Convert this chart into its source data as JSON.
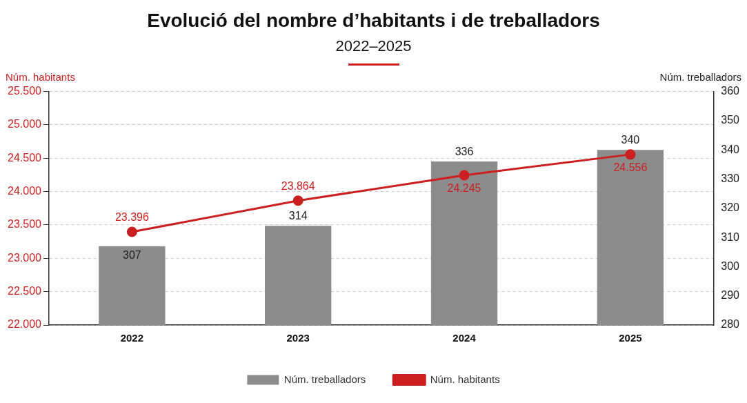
{
  "chart_data": {
    "type": "bar",
    "title": "Evolució del nombre d’habitants i de treballadors",
    "subtitle": "2022–2025",
    "ylabel": "Núm. habitants",
    "y2label": "Núm. treballadors",
    "categories": [
      "2022",
      "2023",
      "2024",
      "2025"
    ],
    "series": [
      {
        "name": "Núm. treballadors",
        "axis": "y2",
        "color": "#8c8c8c",
        "values": [
          307,
          314,
          336,
          340
        ],
        "value_labels": [
          "307",
          "314",
          "336",
          "340"
        ]
      },
      {
        "name": "Núm. habitants",
        "type": "line",
        "axis": "y",
        "color": "#cc1f1f",
        "values": [
          23396,
          23864,
          24245,
          24556
        ],
        "value_labels": [
          "23.396",
          "23.864",
          "24.245",
          "24.556"
        ]
      }
    ],
    "ylim": [
      22000,
      25500
    ],
    "yticks": [
      {
        "value": 22000,
        "label": "22.000"
      },
      {
        "value": 22500,
        "label": "22.500"
      },
      {
        "value": 23000,
        "label": "23.000"
      },
      {
        "value": 23500,
        "label": "23.500"
      },
      {
        "value": 24000,
        "label": "24.000"
      },
      {
        "value": 24500,
        "label": "24.500"
      },
      {
        "value": 25000,
        "label": "25.000"
      },
      {
        "value": 25500,
        "label": "25.500"
      }
    ],
    "y2lim": [
      280,
      360
    ],
    "y2ticks": [
      280,
      290,
      300,
      310,
      320,
      330,
      340,
      350,
      360
    ],
    "grid": "y",
    "legend": "bottom",
    "marker": "circle",
    "line_style": "solid"
  }
}
